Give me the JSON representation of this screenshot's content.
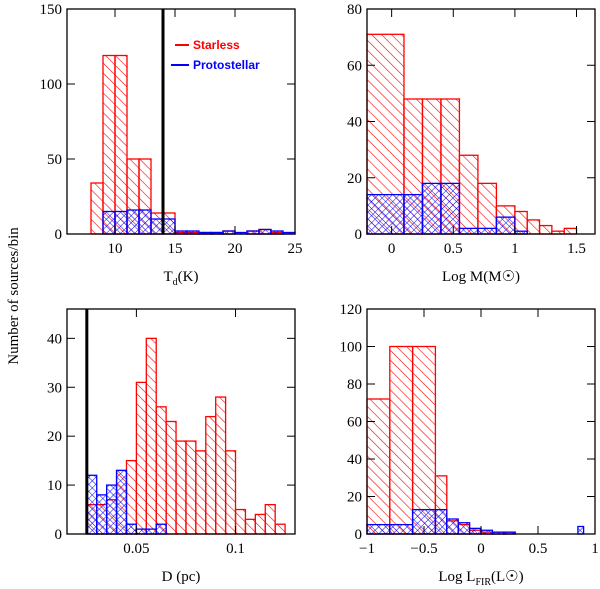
{
  "figure": {
    "ylabel": "Number of sources/bin",
    "colors": {
      "starless": "#ff0000",
      "protostellar": "#0000ff",
      "axis": "#000000"
    },
    "legend": {
      "starless": "Starless",
      "protostellar": "Protostellar"
    }
  },
  "chart_data": [
    {
      "id": "temperature",
      "type": "bar",
      "xlabel_main": "T",
      "xlabel_sub": "d",
      "xlabel_tail": "(K)",
      "xlim": [
        6,
        25
      ],
      "ylim": [
        0,
        150
      ],
      "xticks": [
        10,
        15,
        20,
        25
      ],
      "yticks": [
        0,
        50,
        100,
        150
      ],
      "vline": 14,
      "legend_position": "top-right",
      "series": [
        {
          "name": "Starless",
          "edges": [
            8,
            9,
            10,
            11,
            12,
            13,
            14,
            15,
            16,
            17,
            18,
            19,
            20,
            21,
            22,
            23,
            24,
            25
          ],
          "values": [
            34,
            119,
            119,
            50,
            50,
            14,
            14,
            1,
            1,
            1,
            1,
            2,
            0,
            2,
            3,
            1,
            0
          ]
        },
        {
          "name": "Protostellar",
          "edges": [
            8,
            9,
            10,
            11,
            12,
            13,
            14,
            15,
            16,
            17,
            18,
            19,
            20,
            21,
            22,
            23,
            24,
            25
          ],
          "values": [
            0,
            15,
            15,
            16,
            16,
            10,
            10,
            2,
            2,
            1,
            1,
            2,
            1,
            2,
            3,
            2,
            1
          ]
        }
      ]
    },
    {
      "id": "mass",
      "type": "bar",
      "xlabel": "Log M(M☉)",
      "xlim": [
        -0.2,
        1.65
      ],
      "ylim": [
        0,
        80
      ],
      "xticks": [
        0,
        0.5,
        1,
        1.5
      ],
      "xtick_labels": [
        "0",
        "0.5",
        "1",
        "1.5"
      ],
      "yticks": [
        0,
        20,
        40,
        60,
        80
      ],
      "series": [
        {
          "name": "Starless",
          "edges": [
            -0.2,
            0.1,
            0.25,
            0.4,
            0.55,
            0.7,
            0.85,
            1.0,
            1.1,
            1.2,
            1.3,
            1.4,
            1.5
          ],
          "values": [
            71,
            48,
            48,
            48,
            28,
            18,
            10,
            8,
            5,
            3,
            1,
            2
          ]
        },
        {
          "name": "Protostellar",
          "edges": [
            -0.2,
            0.1,
            0.25,
            0.4,
            0.55,
            0.7,
            0.85,
            1.0,
            1.1,
            1.2,
            1.3,
            1.4,
            1.5
          ],
          "values": [
            14,
            14,
            18,
            18,
            2,
            2,
            6,
            1,
            0,
            0,
            0,
            0
          ]
        }
      ]
    },
    {
      "id": "distance",
      "type": "bar",
      "xlabel": "D (pc)",
      "xlim": [
        0.015,
        0.13
      ],
      "ylim": [
        0,
        46
      ],
      "xticks": [
        0.05,
        0.1
      ],
      "xtick_labels": [
        "0.05",
        "0.1"
      ],
      "yticks": [
        0,
        10,
        20,
        30,
        40
      ],
      "vline": 0.025,
      "series": [
        {
          "name": "Starless",
          "edges": [
            0.025,
            0.03,
            0.035,
            0.04,
            0.045,
            0.05,
            0.055,
            0.06,
            0.065,
            0.07,
            0.075,
            0.08,
            0.085,
            0.09,
            0.095,
            0.1,
            0.105,
            0.11,
            0.115,
            0.12,
            0.125
          ],
          "values": [
            6,
            6,
            7,
            13,
            15,
            31,
            40,
            26,
            23,
            19,
            19,
            17,
            24,
            28,
            17,
            5,
            3,
            4,
            6,
            2
          ]
        },
        {
          "name": "Protostellar",
          "edges": [
            0.025,
            0.03,
            0.035,
            0.04,
            0.045,
            0.05,
            0.055,
            0.06,
            0.065,
            0.07
          ],
          "values": [
            12,
            8,
            10,
            13,
            2,
            1,
            1,
            2,
            0
          ]
        }
      ]
    },
    {
      "id": "luminosity",
      "type": "bar",
      "xlabel_main": "Log L",
      "xlabel_sub": "FIR",
      "xlabel_tail": "(L☉)",
      "xlim": [
        -1,
        1
      ],
      "ylim": [
        0,
        120
      ],
      "xticks": [
        -1,
        -0.5,
        0,
        0.5,
        1
      ],
      "xtick_labels": [
        "−1",
        "−0.5",
        "0",
        "0.5",
        "1"
      ],
      "yticks": [
        0,
        20,
        40,
        60,
        80,
        100,
        120
      ],
      "series": [
        {
          "name": "Starless",
          "edges": [
            -1,
            -0.8,
            -0.6,
            -0.4,
            -0.3,
            -0.2,
            -0.1,
            0,
            0.1,
            0.2,
            0.3
          ],
          "values": [
            72,
            100,
            100,
            31,
            7,
            5,
            2,
            1,
            1,
            1
          ]
        },
        {
          "name": "Protostellar",
          "edges": [
            -1,
            -0.8,
            -0.6,
            -0.4,
            -0.3,
            -0.2,
            -0.1,
            0,
            0.1,
            0.2,
            0.3,
            0.85,
            0.9
          ],
          "values": [
            5,
            5,
            13,
            13,
            8,
            6,
            3,
            2,
            1,
            1,
            0,
            4
          ]
        }
      ]
    }
  ]
}
